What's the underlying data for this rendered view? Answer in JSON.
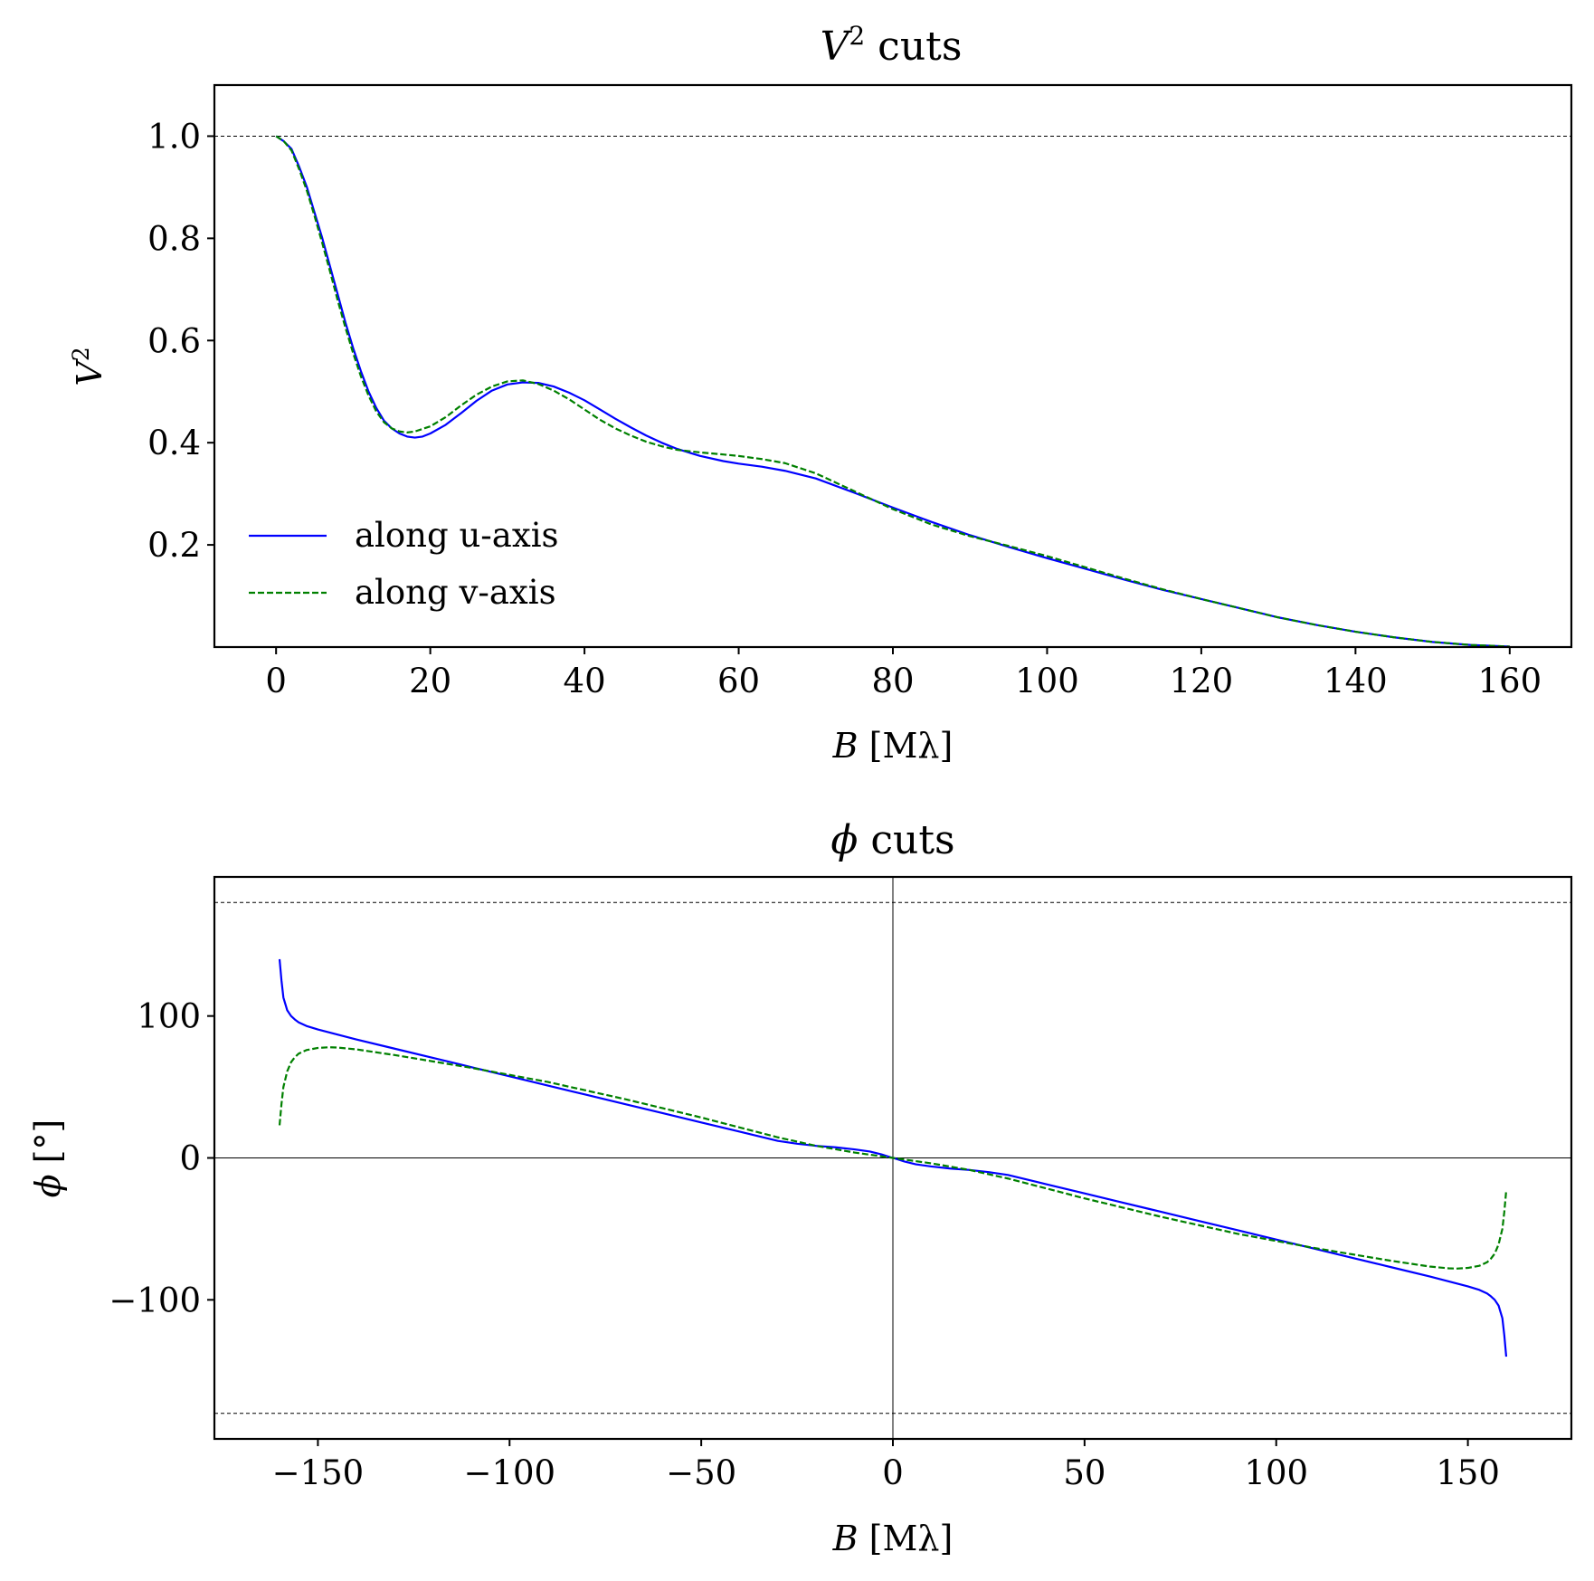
{
  "chart_data": [
    {
      "type": "line",
      "title": "V² cuts",
      "title_math": "V",
      "title_sup": "2",
      "title_rest": " cuts",
      "xlabel_math": "B",
      "xlabel_rest": " [Mλ]",
      "ylabel_math": "V",
      "ylabel_sup": "2",
      "xlim": [
        -8,
        168
      ],
      "ylim": [
        0,
        1.1
      ],
      "xticks": [
        0,
        20,
        40,
        60,
        80,
        100,
        120,
        140,
        160
      ],
      "xtick_labels": [
        "0",
        "20",
        "40",
        "60",
        "80",
        "100",
        "120",
        "140",
        "160"
      ],
      "yticks": [
        0.2,
        0.4,
        0.6,
        0.8,
        1.0
      ],
      "ytick_labels": [
        "0.2",
        "0.4",
        "0.6",
        "0.8",
        "1.0"
      ],
      "reference_lines_y": [
        1.0
      ],
      "legend_position": "lower-left",
      "series": [
        {
          "name": "along u-axis",
          "color": "#0000ff",
          "dash": "solid",
          "x": [
            0,
            1,
            2,
            3,
            4,
            5,
            6,
            7,
            8,
            9,
            10,
            11,
            12,
            13,
            14,
            15,
            16,
            17,
            18,
            19,
            20,
            22,
            24,
            26,
            28,
            30,
            32,
            34,
            36,
            38,
            40,
            42,
            44,
            46,
            48,
            50,
            52,
            55,
            58,
            60,
            63,
            66,
            70,
            75,
            80,
            85,
            90,
            95,
            100,
            105,
            110,
            115,
            120,
            125,
            130,
            135,
            140,
            145,
            150,
            155,
            160
          ],
          "y": [
            1.0,
            0.99,
            0.975,
            0.94,
            0.9,
            0.85,
            0.8,
            0.745,
            0.69,
            0.635,
            0.585,
            0.54,
            0.5,
            0.468,
            0.443,
            0.428,
            0.418,
            0.412,
            0.41,
            0.412,
            0.418,
            0.435,
            0.458,
            0.482,
            0.502,
            0.514,
            0.518,
            0.517,
            0.51,
            0.498,
            0.483,
            0.465,
            0.447,
            0.43,
            0.414,
            0.4,
            0.388,
            0.374,
            0.364,
            0.359,
            0.353,
            0.345,
            0.33,
            0.302,
            0.273,
            0.245,
            0.219,
            0.196,
            0.174,
            0.153,
            0.132,
            0.112,
            0.094,
            0.076,
            0.058,
            0.043,
            0.03,
            0.019,
            0.01,
            0.004,
            0.001
          ]
        },
        {
          "name": "along v-axis",
          "color": "#008000",
          "dash": "dashed",
          "x": [
            0,
            1,
            2,
            3,
            4,
            5,
            6,
            7,
            8,
            9,
            10,
            11,
            12,
            13,
            14,
            15,
            16,
            17,
            18,
            20,
            22,
            24,
            26,
            28,
            30,
            32,
            34,
            36,
            38,
            40,
            42,
            44,
            46,
            48,
            50,
            52,
            55,
            58,
            60,
            63,
            66,
            70,
            75,
            80,
            85,
            90,
            95,
            100,
            105,
            110,
            115,
            120,
            125,
            130,
            135,
            140,
            145,
            150,
            155,
            160
          ],
          "y": [
            1.0,
            0.99,
            0.972,
            0.935,
            0.893,
            0.843,
            0.79,
            0.735,
            0.678,
            0.625,
            0.575,
            0.53,
            0.492,
            0.461,
            0.44,
            0.428,
            0.422,
            0.42,
            0.422,
            0.432,
            0.45,
            0.473,
            0.494,
            0.51,
            0.52,
            0.522,
            0.515,
            0.502,
            0.485,
            0.465,
            0.445,
            0.428,
            0.414,
            0.402,
            0.393,
            0.386,
            0.381,
            0.377,
            0.374,
            0.368,
            0.36,
            0.34,
            0.305,
            0.27,
            0.24,
            0.217,
            0.198,
            0.178,
            0.156,
            0.134,
            0.113,
            0.094,
            0.076,
            0.058,
            0.043,
            0.03,
            0.019,
            0.01,
            0.004,
            0.001
          ]
        }
      ]
    },
    {
      "type": "line",
      "title": "ϕ cuts",
      "title_math": "ϕ",
      "title_rest": " cuts",
      "xlabel_math": "B",
      "xlabel_rest": " [Mλ]",
      "ylabel_math": "ϕ",
      "ylabel_rest": " [°]",
      "xlim": [
        -177,
        177
      ],
      "ylim": [
        -198,
        198
      ],
      "xticks": [
        -150,
        -100,
        -50,
        0,
        50,
        100,
        150
      ],
      "xtick_labels": [
        "−150",
        "−100",
        "−50",
        "0",
        "50",
        "100",
        "150"
      ],
      "yticks": [
        -100,
        0,
        100
      ],
      "ytick_labels": [
        "−100",
        "0",
        "100"
      ],
      "reference_lines_y": [
        180,
        -180
      ],
      "zero_lines": true,
      "series": [
        {
          "name": "along u-axis",
          "color": "#0000ff",
          "dash": "solid",
          "x": [
            -160,
            -159.5,
            -159,
            -158,
            -157,
            -156,
            -155,
            -153,
            -150,
            -145,
            -140,
            -130,
            -120,
            -110,
            -100,
            -90,
            -80,
            -70,
            -60,
            -50,
            -40,
            -30,
            -25,
            -20,
            -15,
            -10,
            -6,
            -3,
            -1,
            0,
            1,
            3,
            6,
            10,
            15,
            20,
            25,
            30,
            40,
            50,
            60,
            70,
            80,
            90,
            100,
            110,
            120,
            130,
            140,
            145,
            150,
            153,
            155,
            156,
            157,
            158,
            159,
            159.5,
            160
          ],
          "y": [
            140,
            125,
            113,
            104,
            100,
            97.5,
            95.5,
            93,
            90.5,
            87,
            83.5,
            77,
            70.5,
            64,
            57.5,
            51,
            44.5,
            38,
            31.5,
            25,
            18.5,
            12,
            10,
            8.5,
            7.5,
            6,
            4.5,
            2.5,
            0.8,
            0,
            -0.8,
            -2.5,
            -4.5,
            -6,
            -7.5,
            -8.5,
            -10,
            -12,
            -18.5,
            -25,
            -31.5,
            -38,
            -44.5,
            -51,
            -57.5,
            -64,
            -70.5,
            -77,
            -83.5,
            -87,
            -90.5,
            -93,
            -95.5,
            -97.5,
            -100,
            -104,
            -113,
            -125,
            -140
          ]
        },
        {
          "name": "along v-axis",
          "color": "#008000",
          "dash": "dashed",
          "x": [
            -160,
            -159.5,
            -159,
            -158,
            -157,
            -156,
            -155,
            -153,
            -150,
            -147,
            -145,
            -140,
            -130,
            -120,
            -110,
            -100,
            -90,
            -80,
            -70,
            -60,
            -50,
            -40,
            -30,
            -20,
            -10,
            0,
            10,
            20,
            30,
            40,
            50,
            60,
            70,
            80,
            90,
            100,
            110,
            120,
            130,
            140,
            145,
            147,
            150,
            153,
            155,
            156,
            157,
            158,
            159,
            159.5,
            160
          ],
          "y": [
            23,
            38,
            50,
            61,
            67.5,
            71,
            73.5,
            76,
            77.5,
            78,
            77.8,
            76.5,
            72.5,
            68,
            63.5,
            58.5,
            53.5,
            47.5,
            41.5,
            35,
            28.5,
            21.5,
            14.5,
            8.5,
            3.8,
            0,
            -3.8,
            -8.5,
            -14.5,
            -21.5,
            -28.5,
            -35,
            -41.5,
            -47.5,
            -53.5,
            -58.5,
            -63.5,
            -68,
            -72.5,
            -76.5,
            -77.8,
            -78,
            -77.5,
            -76,
            -73.5,
            -71,
            -67.5,
            -61,
            -50,
            -38,
            -23
          ]
        }
      ]
    }
  ]
}
